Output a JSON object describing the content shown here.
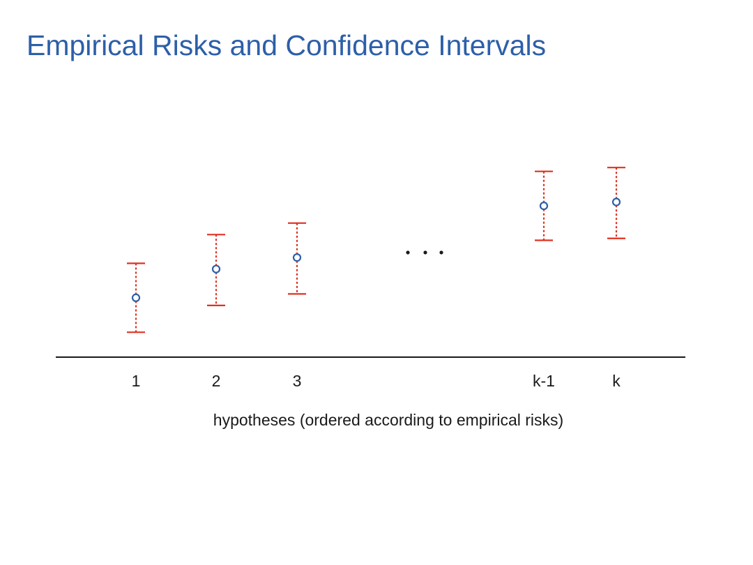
{
  "slide": {
    "title": "Empirical Risks and Confidence Intervals"
  },
  "chart_data": {
    "type": "scatter",
    "title": "",
    "xlabel": "hypotheses (ordered according to empirical risks)",
    "ylabel": "",
    "categories": [
      "1",
      "2",
      "3",
      "k-1",
      "k"
    ],
    "ellipsis": "...",
    "values": [
      1.55,
      2.3,
      2.6,
      3.95,
      4.05
    ],
    "lower": [
      0.65,
      1.35,
      1.65,
      3.05,
      3.1
    ],
    "upper": [
      2.45,
      3.2,
      3.5,
      4.85,
      4.95
    ],
    "ylim": [
      0,
      5.5
    ],
    "grid": false,
    "legend": "none",
    "colors": {
      "point": "#2d5fa8",
      "interval": "#e03020",
      "axis": "#1a1a1a",
      "ellipsis": "#1a1a1a"
    }
  }
}
